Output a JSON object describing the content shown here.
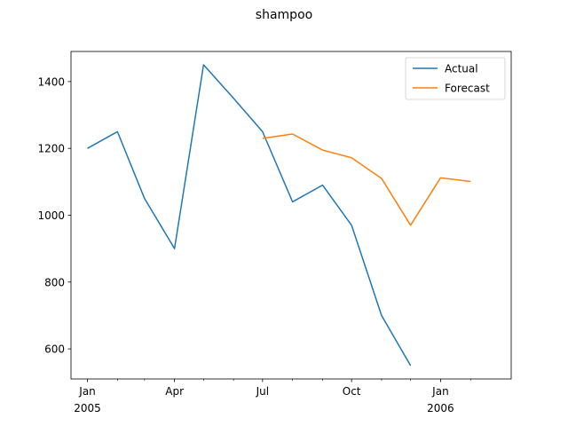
{
  "chart_data": {
    "type": "line",
    "title": "shampoo",
    "xlabel": "",
    "ylabel": "",
    "x_range": [
      "2004-12-15",
      "2006-03-15"
    ],
    "ylim": [
      510,
      1490
    ],
    "y_ticks": [
      600,
      800,
      1000,
      1200,
      1400
    ],
    "y_tick_labels": [
      "600",
      "800",
      "1000",
      "1200",
      "1400"
    ],
    "x_major_ticks": [
      {
        "date": "2005-01",
        "label": "Jan",
        "label2": "2005"
      },
      {
        "date": "2005-04",
        "label": "Apr",
        "label2": ""
      },
      {
        "date": "2005-07",
        "label": "Jul",
        "label2": ""
      },
      {
        "date": "2005-10",
        "label": "Oct",
        "label2": ""
      },
      {
        "date": "2006-01",
        "label": "Jan",
        "label2": "2006"
      }
    ],
    "x_minor_ticks": [
      "2005-02",
      "2005-03",
      "2005-05",
      "2005-06",
      "2005-08",
      "2005-09",
      "2005-11",
      "2005-12",
      "2006-02"
    ],
    "legend_position": "top-right",
    "grid": false,
    "series": [
      {
        "name": "Actual",
        "color": "#1f77b4",
        "x": [
          "2005-01",
          "2005-02",
          "2005-03",
          "2005-04",
          "2005-05",
          "2005-06",
          "2005-07",
          "2005-08",
          "2005-09",
          "2005-10",
          "2005-11",
          "2005-12"
        ],
        "values": [
          1200,
          1250,
          1050,
          900,
          1450,
          1350,
          1250,
          1040,
          1090,
          970,
          700,
          550
        ]
      },
      {
        "name": "Forecast",
        "color": "#ff7f0e",
        "x": [
          "2005-07",
          "2005-08",
          "2005-09",
          "2005-10",
          "2005-11",
          "2005-12",
          "2006-01",
          "2006-02"
        ],
        "values": [
          1230,
          1243,
          1195,
          1172,
          1110,
          970,
          1112,
          1101
        ]
      }
    ]
  }
}
